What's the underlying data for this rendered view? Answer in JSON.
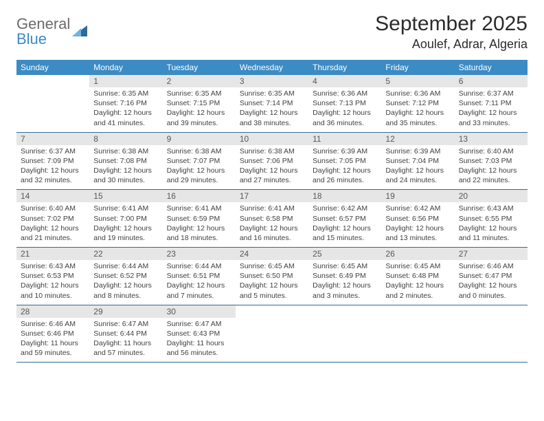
{
  "logo": {
    "text_general": "General",
    "text_blue": "Blue",
    "shape_color": "#2f6a99"
  },
  "title": "September 2025",
  "location": "Aoulef, Adrar, Algeria",
  "colors": {
    "header_bg": "#3b8bc4",
    "header_text": "#ffffff",
    "daynum_bg": "#e6e6e6",
    "daynum_text": "#575757",
    "border": "#2f6a99",
    "body_text": "#404040",
    "page_bg": "#ffffff"
  },
  "typography": {
    "title_fontsize": 30,
    "location_fontsize": 18,
    "weekday_fontsize": 12,
    "daynum_fontsize": 12,
    "cell_fontsize": 10.5
  },
  "weekdays": [
    "Sunday",
    "Monday",
    "Tuesday",
    "Wednesday",
    "Thursday",
    "Friday",
    "Saturday"
  ],
  "weeks": [
    [
      {
        "day": "",
        "sunrise": "",
        "sunset": "",
        "daylight": ""
      },
      {
        "day": "1",
        "sunrise": "Sunrise: 6:35 AM",
        "sunset": "Sunset: 7:16 PM",
        "daylight": "Daylight: 12 hours and 41 minutes."
      },
      {
        "day": "2",
        "sunrise": "Sunrise: 6:35 AM",
        "sunset": "Sunset: 7:15 PM",
        "daylight": "Daylight: 12 hours and 39 minutes."
      },
      {
        "day": "3",
        "sunrise": "Sunrise: 6:35 AM",
        "sunset": "Sunset: 7:14 PM",
        "daylight": "Daylight: 12 hours and 38 minutes."
      },
      {
        "day": "4",
        "sunrise": "Sunrise: 6:36 AM",
        "sunset": "Sunset: 7:13 PM",
        "daylight": "Daylight: 12 hours and 36 minutes."
      },
      {
        "day": "5",
        "sunrise": "Sunrise: 6:36 AM",
        "sunset": "Sunset: 7:12 PM",
        "daylight": "Daylight: 12 hours and 35 minutes."
      },
      {
        "day": "6",
        "sunrise": "Sunrise: 6:37 AM",
        "sunset": "Sunset: 7:11 PM",
        "daylight": "Daylight: 12 hours and 33 minutes."
      }
    ],
    [
      {
        "day": "7",
        "sunrise": "Sunrise: 6:37 AM",
        "sunset": "Sunset: 7:09 PM",
        "daylight": "Daylight: 12 hours and 32 minutes."
      },
      {
        "day": "8",
        "sunrise": "Sunrise: 6:38 AM",
        "sunset": "Sunset: 7:08 PM",
        "daylight": "Daylight: 12 hours and 30 minutes."
      },
      {
        "day": "9",
        "sunrise": "Sunrise: 6:38 AM",
        "sunset": "Sunset: 7:07 PM",
        "daylight": "Daylight: 12 hours and 29 minutes."
      },
      {
        "day": "10",
        "sunrise": "Sunrise: 6:38 AM",
        "sunset": "Sunset: 7:06 PM",
        "daylight": "Daylight: 12 hours and 27 minutes."
      },
      {
        "day": "11",
        "sunrise": "Sunrise: 6:39 AM",
        "sunset": "Sunset: 7:05 PM",
        "daylight": "Daylight: 12 hours and 26 minutes."
      },
      {
        "day": "12",
        "sunrise": "Sunrise: 6:39 AM",
        "sunset": "Sunset: 7:04 PM",
        "daylight": "Daylight: 12 hours and 24 minutes."
      },
      {
        "day": "13",
        "sunrise": "Sunrise: 6:40 AM",
        "sunset": "Sunset: 7:03 PM",
        "daylight": "Daylight: 12 hours and 22 minutes."
      }
    ],
    [
      {
        "day": "14",
        "sunrise": "Sunrise: 6:40 AM",
        "sunset": "Sunset: 7:02 PM",
        "daylight": "Daylight: 12 hours and 21 minutes."
      },
      {
        "day": "15",
        "sunrise": "Sunrise: 6:41 AM",
        "sunset": "Sunset: 7:00 PM",
        "daylight": "Daylight: 12 hours and 19 minutes."
      },
      {
        "day": "16",
        "sunrise": "Sunrise: 6:41 AM",
        "sunset": "Sunset: 6:59 PM",
        "daylight": "Daylight: 12 hours and 18 minutes."
      },
      {
        "day": "17",
        "sunrise": "Sunrise: 6:41 AM",
        "sunset": "Sunset: 6:58 PM",
        "daylight": "Daylight: 12 hours and 16 minutes."
      },
      {
        "day": "18",
        "sunrise": "Sunrise: 6:42 AM",
        "sunset": "Sunset: 6:57 PM",
        "daylight": "Daylight: 12 hours and 15 minutes."
      },
      {
        "day": "19",
        "sunrise": "Sunrise: 6:42 AM",
        "sunset": "Sunset: 6:56 PM",
        "daylight": "Daylight: 12 hours and 13 minutes."
      },
      {
        "day": "20",
        "sunrise": "Sunrise: 6:43 AM",
        "sunset": "Sunset: 6:55 PM",
        "daylight": "Daylight: 12 hours and 11 minutes."
      }
    ],
    [
      {
        "day": "21",
        "sunrise": "Sunrise: 6:43 AM",
        "sunset": "Sunset: 6:53 PM",
        "daylight": "Daylight: 12 hours and 10 minutes."
      },
      {
        "day": "22",
        "sunrise": "Sunrise: 6:44 AM",
        "sunset": "Sunset: 6:52 PM",
        "daylight": "Daylight: 12 hours and 8 minutes."
      },
      {
        "day": "23",
        "sunrise": "Sunrise: 6:44 AM",
        "sunset": "Sunset: 6:51 PM",
        "daylight": "Daylight: 12 hours and 7 minutes."
      },
      {
        "day": "24",
        "sunrise": "Sunrise: 6:45 AM",
        "sunset": "Sunset: 6:50 PM",
        "daylight": "Daylight: 12 hours and 5 minutes."
      },
      {
        "day": "25",
        "sunrise": "Sunrise: 6:45 AM",
        "sunset": "Sunset: 6:49 PM",
        "daylight": "Daylight: 12 hours and 3 minutes."
      },
      {
        "day": "26",
        "sunrise": "Sunrise: 6:45 AM",
        "sunset": "Sunset: 6:48 PM",
        "daylight": "Daylight: 12 hours and 2 minutes."
      },
      {
        "day": "27",
        "sunrise": "Sunrise: 6:46 AM",
        "sunset": "Sunset: 6:47 PM",
        "daylight": "Daylight: 12 hours and 0 minutes."
      }
    ],
    [
      {
        "day": "28",
        "sunrise": "Sunrise: 6:46 AM",
        "sunset": "Sunset: 6:46 PM",
        "daylight": "Daylight: 11 hours and 59 minutes."
      },
      {
        "day": "29",
        "sunrise": "Sunrise: 6:47 AM",
        "sunset": "Sunset: 6:44 PM",
        "daylight": "Daylight: 11 hours and 57 minutes."
      },
      {
        "day": "30",
        "sunrise": "Sunrise: 6:47 AM",
        "sunset": "Sunset: 6:43 PM",
        "daylight": "Daylight: 11 hours and 56 minutes."
      },
      {
        "day": "",
        "sunrise": "",
        "sunset": "",
        "daylight": ""
      },
      {
        "day": "",
        "sunrise": "",
        "sunset": "",
        "daylight": ""
      },
      {
        "day": "",
        "sunrise": "",
        "sunset": "",
        "daylight": ""
      },
      {
        "day": "",
        "sunrise": "",
        "sunset": "",
        "daylight": ""
      }
    ]
  ]
}
